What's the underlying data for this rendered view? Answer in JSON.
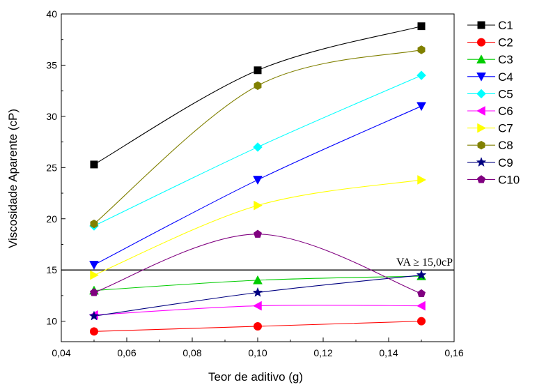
{
  "chart_data": {
    "type": "line",
    "title": "",
    "xlabel": "Teor de aditivo (g)",
    "ylabel": "Viscosidade Aparente (cP)",
    "xlim": [
      0.04,
      0.16
    ],
    "ylim": [
      8,
      40
    ],
    "x_ticks": [
      "0,04",
      "0,06",
      "0,08",
      "0,10",
      "0,12",
      "0,14",
      "0,16"
    ],
    "y_ticks": [
      "10",
      "15",
      "20",
      "25",
      "30",
      "35",
      "40"
    ],
    "x": [
      0.05,
      0.1,
      0.15
    ],
    "grid": false,
    "legend_position": "right",
    "series": [
      {
        "name": "C1",
        "color": "#000000",
        "marker": "square",
        "values": [
          25.3,
          34.5,
          38.8
        ]
      },
      {
        "name": "C2",
        "color": "#ff0000",
        "marker": "circle",
        "values": [
          9.0,
          9.5,
          10.0
        ]
      },
      {
        "name": "C3",
        "color": "#00cc00",
        "marker": "triangle-up",
        "values": [
          13.0,
          14.0,
          14.4
        ]
      },
      {
        "name": "C4",
        "color": "#0000ff",
        "marker": "triangle-down",
        "values": [
          15.5,
          23.8,
          31.0
        ]
      },
      {
        "name": "C5",
        "color": "#00ffff",
        "marker": "diamond",
        "values": [
          19.3,
          27.0,
          34.0
        ]
      },
      {
        "name": "C6",
        "color": "#ff00ff",
        "marker": "triangle-left",
        "values": [
          10.6,
          11.5,
          11.5
        ]
      },
      {
        "name": "C7",
        "color": "#ffff00",
        "marker": "triangle-right",
        "values": [
          14.5,
          21.3,
          23.8
        ]
      },
      {
        "name": "C8",
        "color": "#808000",
        "marker": "hexagon",
        "values": [
          19.5,
          33.0,
          36.5
        ]
      },
      {
        "name": "C9",
        "color": "#000080",
        "marker": "star",
        "values": [
          10.5,
          12.8,
          14.5
        ]
      },
      {
        "name": "C10",
        "color": "#800080",
        "marker": "pentagon",
        "values": [
          12.8,
          18.5,
          12.7
        ]
      }
    ],
    "reference_line": {
      "y": 15.0,
      "label": "VA ≥ 15,0cP",
      "color": "#000000"
    }
  }
}
